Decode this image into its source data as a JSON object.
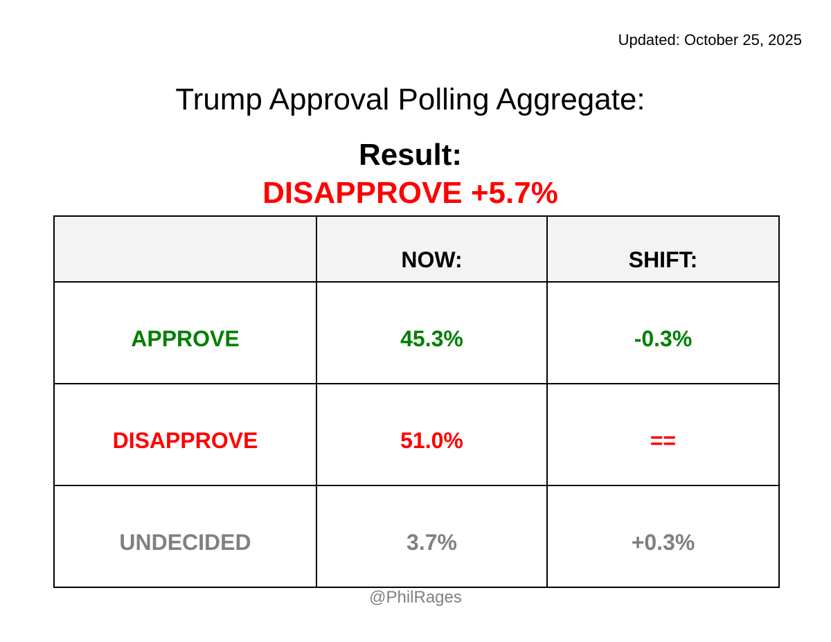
{
  "updated": "Updated: October 25, 2025",
  "title": "Trump Approval Polling Aggregate:",
  "result": {
    "label": "Result:",
    "value": "DISAPPROVE +5.7%"
  },
  "table": {
    "headers": [
      "",
      "NOW:",
      "SHIFT:"
    ],
    "rows": [
      {
        "label": "APPROVE",
        "now": "45.3%",
        "shift": "-0.3%"
      },
      {
        "label": "DISAPPROVE",
        "now": "51.0%",
        "shift": "=="
      },
      {
        "label": "UNDECIDED",
        "now": "3.7%",
        "shift": "+0.3%"
      }
    ]
  },
  "credit": "@PhilRages",
  "colors": {
    "approve": "#008000",
    "disapprove": "#ff0000",
    "undecided": "#808080",
    "header_bg": "#f3f3f3",
    "credit": "#808080",
    "text": "#000000"
  }
}
